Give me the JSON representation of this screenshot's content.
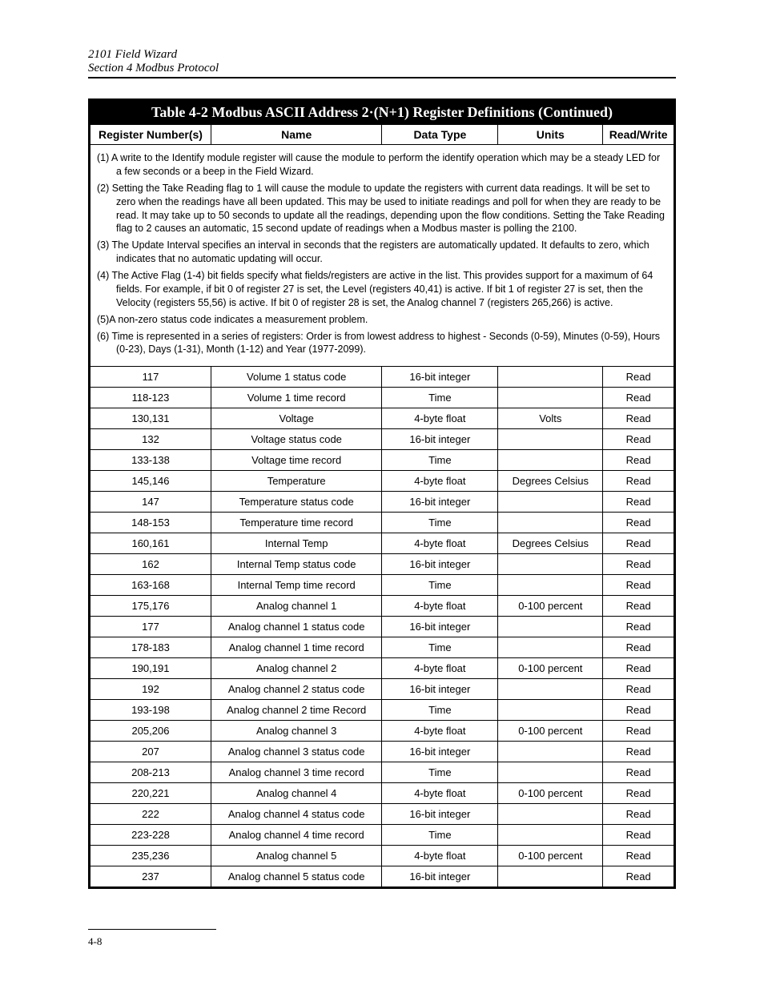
{
  "header": {
    "line1": "2101 Field Wizard",
    "line2": "Section 4  Modbus Protocol"
  },
  "table": {
    "title": "Table 4-2 Modbus ASCII Address 2·(N+1) Register Definitions (Continued)",
    "columns": {
      "reg": "Register Number(s)",
      "name": "Name",
      "dt": "Data Type",
      "units": "Units",
      "rw": "Read/Write"
    },
    "notes": [
      "(1) A write to the Identify module register will cause the module to perform the identify operation which may be a steady LED for a few seconds or a beep in the Field Wizard.",
      "(2) Setting the Take Reading flag to 1 will cause the module to update the registers with current data readings. It will be set to zero when the readings have all been updated.  This may be used to initiate readings and poll for when they are ready to be read. It may take up to 50 seconds to update all the readings, depending upon the flow conditions. Setting the Take Reading flag to 2 causes an automatic, 15 second update of readings when a Modbus master is polling the 2100.",
      "(3) The Update Interval specifies an interval in seconds that the registers are automatically updated.  It defaults to zero, which indicates that no automatic updating will occur.",
      "(4) The Active Flag (1-4) bit fields specify what fields/registers are active in the list. This provides support for a maximum of 64 fields.  For example, if bit 0 of register 27 is set, the Level (registers 40,41) is active. If bit 1 of  register 27 is set, then the Velocity (registers 55,56) is active. If bit 0 of register 28 is set, the Analog channel 7 (registers 265,266) is active.",
      "(5)A non-zero status code indicates a measurement problem.",
      "(6) Time is represented in a series of registers: Order is from lowest address to highest - Seconds (0-59), Minutes (0-59), Hours (0-23), Days (1-31), Month (1-12) and Year (1977-2099)."
    ],
    "rows": [
      {
        "reg": "117",
        "name": "Volume 1 status code",
        "dt": "16-bit integer",
        "units": "",
        "rw": "Read"
      },
      {
        "reg": "118-123",
        "name": "Volume 1 time record",
        "dt": "Time",
        "units": "",
        "rw": "Read"
      },
      {
        "reg": "130,131",
        "name": "Voltage",
        "dt": "4-byte float",
        "units": "Volts",
        "rw": "Read"
      },
      {
        "reg": "132",
        "name": "Voltage status code",
        "dt": "16-bit integer",
        "units": "",
        "rw": "Read"
      },
      {
        "reg": "133-138",
        "name": "Voltage time record",
        "dt": "Time",
        "units": "",
        "rw": "Read"
      },
      {
        "reg": "145,146",
        "name": "Temperature",
        "dt": "4-byte float",
        "units": "Degrees Celsius",
        "rw": "Read"
      },
      {
        "reg": "147",
        "name": "Temperature status code",
        "dt": "16-bit integer",
        "units": "",
        "rw": "Read"
      },
      {
        "reg": "148-153",
        "name": "Temperature time record",
        "dt": "Time",
        "units": "",
        "rw": "Read"
      },
      {
        "reg": "160,161",
        "name": "Internal Temp",
        "dt": "4-byte float",
        "units": "Degrees Celsius",
        "rw": "Read"
      },
      {
        "reg": "162",
        "name": "Internal Temp status code",
        "dt": "16-bit integer",
        "units": "",
        "rw": "Read"
      },
      {
        "reg": "163-168",
        "name": "Internal Temp time record",
        "dt": "Time",
        "units": "",
        "rw": "Read"
      },
      {
        "reg": "175,176",
        "name": "Analog channel 1",
        "dt": "4-byte float",
        "units": "0-100 percent",
        "rw": "Read"
      },
      {
        "reg": "177",
        "name": "Analog channel 1 status code",
        "dt": "16-bit integer",
        "units": "",
        "rw": "Read"
      },
      {
        "reg": "178-183",
        "name": "Analog channel 1 time record",
        "dt": "Time",
        "units": "",
        "rw": "Read"
      },
      {
        "reg": "190,191",
        "name": "Analog channel 2",
        "dt": "4-byte float",
        "units": "0-100 percent",
        "rw": "Read"
      },
      {
        "reg": "192",
        "name": "Analog channel 2 status code",
        "dt": "16-bit integer",
        "units": "",
        "rw": "Read"
      },
      {
        "reg": "193-198",
        "name": "Analog channel 2 time Record",
        "dt": "Time",
        "units": "",
        "rw": "Read"
      },
      {
        "reg": "205,206",
        "name": "Analog channel 3",
        "dt": "4-byte float",
        "units": "0-100 percent",
        "rw": "Read"
      },
      {
        "reg": "207",
        "name": "Analog channel 3 status code",
        "dt": "16-bit integer",
        "units": "",
        "rw": "Read"
      },
      {
        "reg": "208-213",
        "name": "Analog channel 3 time record",
        "dt": "Time",
        "units": "",
        "rw": "Read"
      },
      {
        "reg": "220,221",
        "name": "Analog channel 4",
        "dt": "4-byte float",
        "units": "0-100 percent",
        "rw": "Read"
      },
      {
        "reg": "222",
        "name": "Analog channel 4 status code",
        "dt": "16-bit integer",
        "units": "",
        "rw": "Read"
      },
      {
        "reg": "223-228",
        "name": "Analog channel 4 time record",
        "dt": "Time",
        "units": "",
        "rw": "Read"
      },
      {
        "reg": "235,236",
        "name": "Analog channel 5",
        "dt": "4-byte float",
        "units": "0-100 percent",
        "rw": "Read"
      },
      {
        "reg": "237",
        "name": "Analog channel 5 status code",
        "dt": "16-bit integer",
        "units": "",
        "rw": "Read"
      }
    ]
  },
  "footer": {
    "pagenum": "4-8"
  }
}
